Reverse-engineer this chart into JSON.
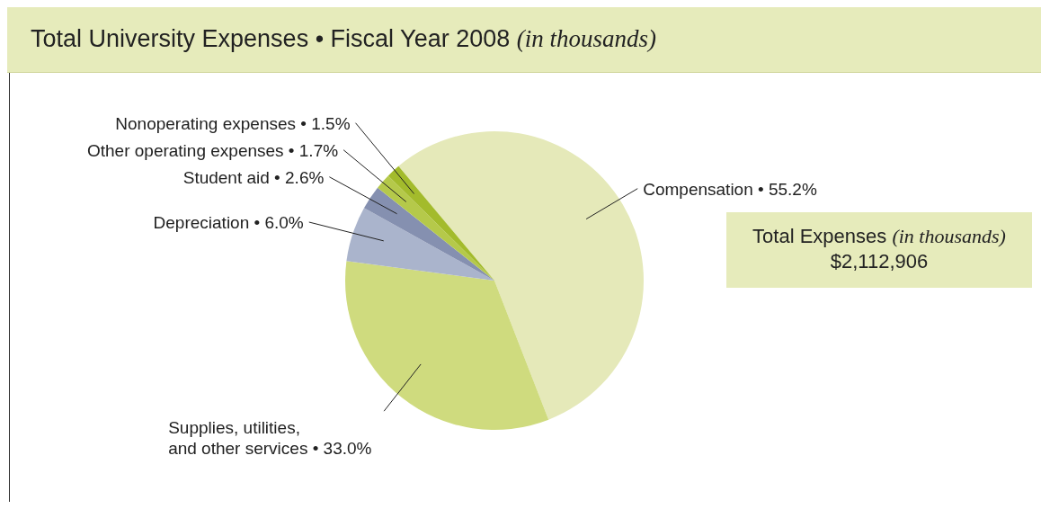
{
  "chart_data": {
    "type": "pie",
    "title": "Total University Expenses • Fiscal Year 2008 (in thousands)",
    "categories": [
      "Compensation",
      "Supplies, utilities, and other services",
      "Depreciation",
      "Student aid",
      "Other operating expenses",
      "Nonoperating expenses"
    ],
    "values": [
      55.2,
      33.0,
      6.0,
      2.6,
      1.7,
      1.5
    ],
    "value_labels": [
      "• 55.2%",
      "• 33.0%",
      "• 6.0%",
      "• 2.6%",
      "• 1.7%",
      "• 1.5%"
    ],
    "colors": [
      "#e5e9b9",
      "#cfdb7e",
      "#aab4cc",
      "#8590b0",
      "#b5c94a",
      "#a3bb2c"
    ],
    "annotations": [
      "Total Expenses (in thousands)",
      "$2,112,906"
    ]
  }
}
